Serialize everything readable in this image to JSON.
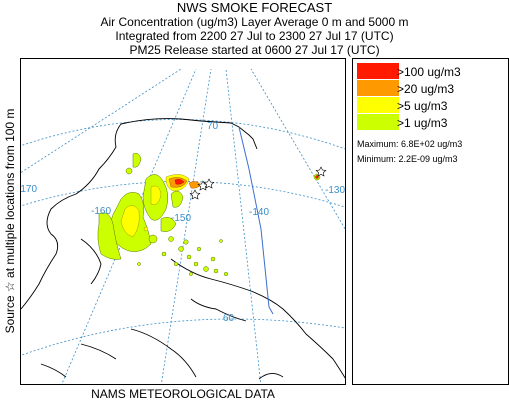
{
  "header": {
    "title": "NWS SMOKE FORECAST",
    "line2": "Air Concentration (ug/m3) Layer Average    0 m and  5000 m",
    "line3": "Integrated from 2200 27 Jul to 2300 27 Jul 17 (UTC)",
    "line4": "PM25 Release started at 0600 27 Jul 17 (UTC)"
  },
  "side_label": "Source ☆ at multiple locations    from   100 m",
  "footer": "NAMS METEOROLOGICAL DATA",
  "legend": {
    "items": [
      {
        "label": ">100 ug/m3",
        "color": "#ff1a00"
      },
      {
        "label": ">20 ug/m3",
        "color": "#ff9900"
      },
      {
        "label": ">5 ug/m3",
        "color": "#ffff00"
      },
      {
        "label": ">1 ug/m3",
        "color": "#ccff00"
      }
    ],
    "maximum": "Maximum: 6.8E+02 ug/m3",
    "minimum": "Minimum: 2.2E-09 ug/m3"
  },
  "map": {
    "grid_labels": [
      "70",
      "-170",
      "-160",
      "-150",
      "-140",
      "-130",
      "60"
    ],
    "grid_color": "#3a8fc8",
    "source_marker": "star-icon"
  }
}
